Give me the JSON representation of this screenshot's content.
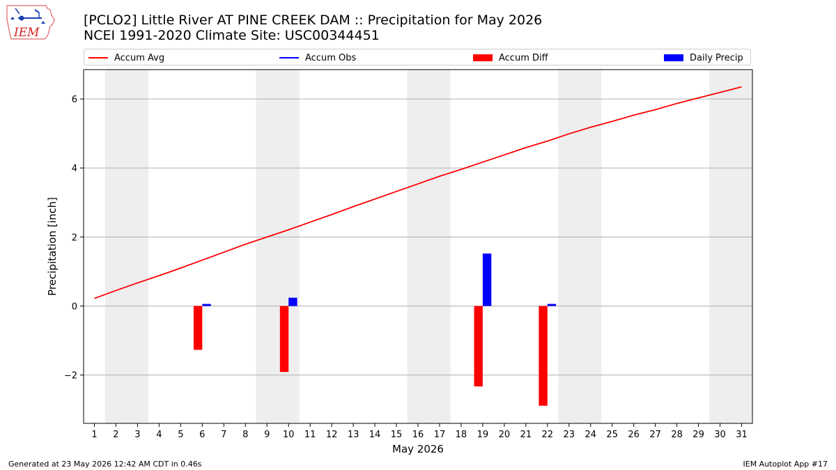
{
  "title_line1": "[PCLO2] Little River  AT PINE CREEK DAM :: Precipitation for May 2026",
  "title_line2": "NCEI 1991-2020 Climate Site: USC00344451",
  "footer_left": "Generated at 23 May 2026 12:42 AM CDT in 0.46s",
  "footer_right": "IEM Autoplot App #17",
  "logo": {
    "text": "IEM",
    "icon": "iowa-state-map-icon"
  },
  "chart_data": {
    "type": "bar",
    "xlabel": "May 2026",
    "ylabel": "Precipitation [inch]",
    "xlim": [
      0.5,
      31.5
    ],
    "ylim": [
      -3.4,
      6.85
    ],
    "yticks": [
      -2,
      0,
      2,
      4,
      6
    ],
    "ytick_labels": [
      "−2",
      "0",
      "2",
      "4",
      "6"
    ],
    "xticks": [
      1,
      2,
      3,
      4,
      5,
      6,
      7,
      8,
      9,
      10,
      11,
      12,
      13,
      14,
      15,
      16,
      17,
      18,
      19,
      20,
      21,
      22,
      23,
      24,
      25,
      26,
      27,
      28,
      29,
      30,
      31
    ],
    "weekend_shading": [
      [
        1.5,
        3.5
      ],
      [
        8.5,
        10.5
      ],
      [
        15.5,
        17.5
      ],
      [
        22.5,
        24.5
      ],
      [
        29.5,
        31.5
      ]
    ],
    "grid": "y",
    "legend_placement": "top",
    "colors": {
      "accum_avg": "#ff0000",
      "accum_obs": "#0000ff",
      "accum_diff": "#ff0000",
      "daily_precip": "#0000ff",
      "weekend": "#eeeeee",
      "grid": "#b0b0b0"
    },
    "series": [
      {
        "name": "Accum Avg",
        "kind": "line",
        "x": [
          1,
          2,
          3,
          4,
          5,
          6,
          7,
          8,
          9,
          10,
          11,
          12,
          13,
          14,
          15,
          16,
          17,
          18,
          19,
          20,
          21,
          22,
          23,
          24,
          25,
          26,
          27,
          28,
          29,
          30,
          31
        ],
        "values": [
          0.22,
          0.45,
          0.67,
          0.88,
          1.1,
          1.33,
          1.56,
          1.79,
          2.0,
          2.21,
          2.43,
          2.65,
          2.88,
          3.1,
          3.32,
          3.54,
          3.76,
          3.96,
          4.17,
          4.38,
          4.59,
          4.78,
          4.99,
          5.18,
          5.35,
          5.53,
          5.69,
          5.87,
          6.03,
          6.19,
          6.35
        ]
      },
      {
        "name": "Accum Obs",
        "kind": "line",
        "x": [],
        "values": []
      },
      {
        "name": "Accum Diff",
        "kind": "bar",
        "x": [
          6,
          10,
          19,
          22
        ],
        "values": [
          -1.27,
          -1.91,
          -2.33,
          -2.89
        ]
      },
      {
        "name": "Daily Precip",
        "kind": "bar",
        "x": [
          6,
          10,
          19,
          22
        ],
        "values": [
          0.06,
          0.24,
          1.52,
          0.06
        ]
      }
    ]
  }
}
